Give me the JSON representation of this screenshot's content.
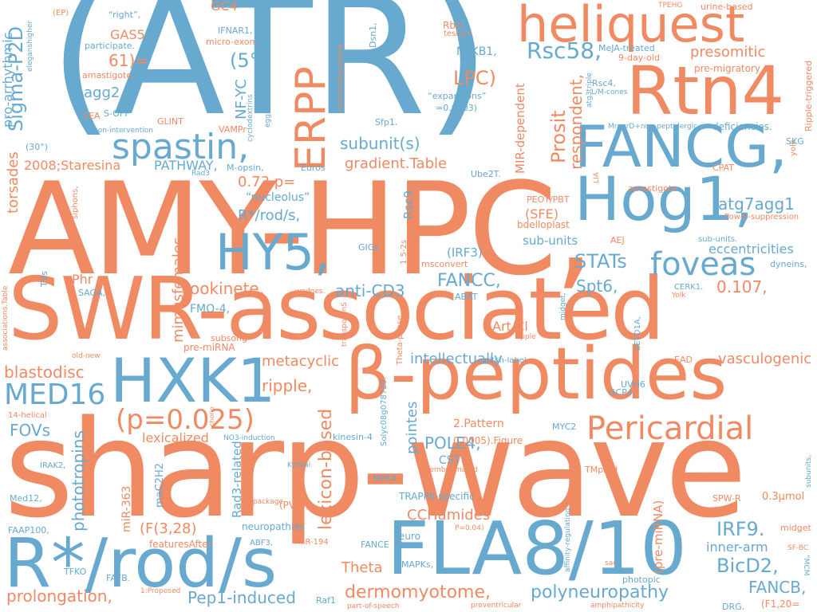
{
  "colors": {
    "orange": "#ef8a62",
    "blue": "#67a9cf",
    "background": "#ffffff"
  },
  "words": [
    {
      "text": "(ATR)",
      "c": "b"
    },
    {
      "text": "AMY-HPC,",
      "c": "o"
    },
    {
      "text": "sharp-wave",
      "c": "o"
    },
    {
      "text": "SWR-associated",
      "c": "o"
    },
    {
      "text": "β-peptides",
      "c": "o"
    },
    {
      "text": "FLA8/10",
      "c": "b"
    },
    {
      "text": "R*/rod/s",
      "c": "b"
    },
    {
      "text": "Rtn4",
      "c": "o"
    },
    {
      "text": "heliquest",
      "c": "o"
    },
    {
      "text": "FANCG,",
      "c": "b"
    },
    {
      "text": "Hog1,",
      "c": "b"
    },
    {
      "text": "HXK1",
      "c": "b"
    },
    {
      "text": "HY5,",
      "c": "b"
    },
    {
      "text": "ERPP",
      "c": "o"
    },
    {
      "text": "spastin,",
      "c": "b"
    },
    {
      "text": "Pericardial",
      "c": "o"
    },
    {
      "text": "(p=0.025)",
      "c": "o"
    },
    {
      "text": "MED16",
      "c": "b"
    },
    {
      "text": "foveas",
      "c": "b"
    },
    {
      "text": "Rsc58,",
      "c": "b"
    },
    {
      "text": "Sigma-P2D",
      "c": "b"
    },
    {
      "text": "LPC)",
      "c": "o"
    },
    {
      "text": "presomitic",
      "c": "o"
    },
    {
      "text": "atg7agg1",
      "c": "b"
    },
    {
      "text": "STATs",
      "c": "b"
    },
    {
      "text": "eccentricities",
      "c": "b"
    },
    {
      "text": "FANCC,",
      "c": "b"
    },
    {
      "text": "Spt6,",
      "c": "b"
    },
    {
      "text": "0.107,",
      "c": "o"
    },
    {
      "text": "vasculogenic",
      "c": "o"
    },
    {
      "text": "IRF9.",
      "c": "b"
    },
    {
      "text": "BicD2,",
      "c": "b"
    },
    {
      "text": "FANCB,",
      "c": "b"
    },
    {
      "text": "inner-arm",
      "c": "b"
    },
    {
      "text": "polyneuropathy",
      "c": "b"
    },
    {
      "text": "dermomyotome,",
      "c": "o"
    },
    {
      "text": "Pep1-induced",
      "c": "b"
    },
    {
      "text": "prolongation,",
      "c": "o"
    },
    {
      "text": "Theta",
      "c": "o"
    },
    {
      "text": "CCHamides",
      "c": "o"
    },
    {
      "text": "POLE4,",
      "c": "b"
    },
    {
      "text": "lexicon-based",
      "c": "o"
    },
    {
      "text": "pointes",
      "c": "b"
    },
    {
      "text": "ripple,",
      "c": "o"
    },
    {
      "text": "metacyclic",
      "c": "o"
    },
    {
      "text": "intellectually",
      "c": "b"
    },
    {
      "text": "blastodisc",
      "c": "o"
    },
    {
      "text": "FOVs",
      "c": "b"
    },
    {
      "text": "phototropins",
      "c": "b"
    },
    {
      "text": "lexicalized",
      "c": "o"
    },
    {
      "text": "mimusfemales",
      "c": "o"
    },
    {
      "text": "ookinete,",
      "c": "o"
    },
    {
      "text": "anti-CD3",
      "c": "b"
    },
    {
      "text": "R*/rod/s,",
      "c": "b"
    },
    {
      "text": "0.73,p=",
      "c": "o"
    },
    {
      "text": "subunit(s)",
      "c": "b"
    },
    {
      "text": "gradient.Table",
      "c": "o"
    },
    {
      "text": "PATHWAY,",
      "c": "b"
    },
    {
      "text": "Prosit",
      "c": "o"
    },
    {
      "text": "respondent,",
      "c": "o"
    },
    {
      "text": "torsades",
      "c": "o"
    },
    {
      "text": "2008;Staresina",
      "c": "o"
    },
    {
      "text": "pro-arrhythmic",
      "c": "b"
    },
    {
      "text": "agg2",
      "c": "b"
    },
    {
      "text": "GAS5.",
      "c": "o"
    },
    {
      "text": "61)=",
      "c": "o"
    },
    {
      "text": "(5°,",
      "c": "b"
    },
    {
      "text": "NF-YC",
      "c": "b"
    },
    {
      "text": "NFKB1,",
      "c": "b"
    },
    {
      "text": "GC4",
      "c": "o"
    },
    {
      "text": "MIR-dependent",
      "c": "o"
    },
    {
      "text": "(SFE)",
      "c": "o"
    },
    {
      "text": "sub-units",
      "c": "b"
    },
    {
      "text": "Rsc9,",
      "c": "b"
    },
    {
      "text": "(IRF3)",
      "c": "b"
    },
    {
      "text": "Art/Cl",
      "c": "o"
    },
    {
      "text": "Phr",
      "c": "o"
    },
    {
      "text": "FMO-4,",
      "c": "b"
    },
    {
      "text": "pre-miRNA",
      "c": "o"
    },
    {
      "text": "subsong",
      "c": "o"
    },
    {
      "text": "2.Pattern",
      "c": "o"
    },
    {
      "text": "CST",
      "c": "b"
    },
    {
      "text": "MPK4",
      "c": "b"
    },
    {
      "text": "TRAPPII-specific",
      "c": "b"
    },
    {
      "text": "neuropathies",
      "c": "b"
    },
    {
      "text": "maC2H2",
      "c": "b"
    },
    {
      "text": "miR-363",
      "c": "o"
    },
    {
      "text": "(F(3,28)",
      "c": "o"
    },
    {
      "text": "Rad3-related",
      "c": "b"
    },
    {
      "text": "(pre-miRNA)",
      "c": "o"
    },
    {
      "text": "0.3µmol",
      "c": "o"
    },
    {
      "text": "(PVC),",
      "c": "o"
    },
    {
      "text": "MAPKs,",
      "c": "b"
    },
    {
      "text": "FANCE",
      "c": "b"
    },
    {
      "text": "euro",
      "c": "b"
    },
    {
      "text": "featuresAfter",
      "c": "o"
    },
    {
      "text": "ABF3,",
      "c": "b"
    },
    {
      "text": "miR-194",
      "c": "o"
    },
    {
      "text": "Raf1",
      "c": "b"
    },
    {
      "text": "TFKO",
      "c": "b"
    },
    {
      "text": "FAFB.",
      "c": "b"
    },
    {
      "text": "FAAP100,",
      "c": "b"
    },
    {
      "text": "Med12,",
      "c": "b"
    },
    {
      "text": "IRAK2,",
      "c": "b"
    },
    {
      "text": "14-helical",
      "c": "o"
    },
    {
      "text": "old-new",
      "c": "o"
    },
    {
      "text": "SAGA,",
      "c": "b"
    },
    {
      "text": "TVs",
      "c": "b"
    },
    {
      "text": "siphons,",
      "c": "o"
    },
    {
      "text": "associations.Table",
      "c": "o"
    },
    {
      "text": "(30°)",
      "c": "b"
    },
    {
      "text": "SEA",
      "c": "o"
    },
    {
      "text": "S-OFF",
      "c": "b"
    },
    {
      "text": "amastigote,",
      "c": "o"
    },
    {
      "text": "participate.",
      "c": "b"
    },
    {
      "text": "“right”,",
      "c": "b"
    },
    {
      "text": "(EP)",
      "c": "o"
    },
    {
      "text": "eleganshigher",
      "c": "b"
    },
    {
      "text": "IFNAR1,",
      "c": "b"
    },
    {
      "text": "micro-exon,",
      "c": "o"
    },
    {
      "text": "cyclodextrins",
      "c": "b"
    },
    {
      "text": "eggshells",
      "c": "b"
    },
    {
      "text": "GLINT",
      "c": "o"
    },
    {
      "text": "VAMPr",
      "c": "o"
    },
    {
      "text": "non-intervention",
      "c": "b"
    },
    {
      "text": "M-opsin,",
      "c": "b"
    },
    {
      "text": "Rad3",
      "c": "b"
    },
    {
      "text": "Euros",
      "c": "b"
    },
    {
      "text": "“nucleolus”",
      "c": "b"
    },
    {
      "text": "Dsn1,",
      "c": "b"
    },
    {
      "text": "non-biodegradable",
      "c": "o"
    },
    {
      "text": "Rbcl",
      "c": "o"
    },
    {
      "text": "test;z=",
      "c": "o"
    },
    {
      "text": "“expansions”",
      "c": "b"
    },
    {
      "text": "=0.0003)",
      "c": "b"
    },
    {
      "text": "Sfp1.",
      "c": "b"
    },
    {
      "text": "MeJA-treated",
      "c": "b"
    },
    {
      "text": "9-day-old",
      "c": "o"
    },
    {
      "text": "TPEHG",
      "c": "o"
    },
    {
      "text": "urine-based",
      "c": "o"
    },
    {
      "text": "pre-migratory",
      "c": "o"
    },
    {
      "text": "Rsc4,",
      "c": "b"
    },
    {
      "text": "L/M-cones",
      "c": "b"
    },
    {
      "text": "atg3triple",
      "c": "b"
    },
    {
      "text": "MrgprD+non-peptidergic",
      "c": "b"
    },
    {
      "text": "deficiencies.",
      "c": "b"
    },
    {
      "text": "Ripple-triggered",
      "c": "o"
    },
    {
      "text": "yolk",
      "c": "o"
    },
    {
      "text": "SKG",
      "c": "b"
    },
    {
      "text": "CPAT",
      "c": "o"
    },
    {
      "text": "LIA",
      "c": "o"
    },
    {
      "text": "amastigote",
      "c": "o"
    },
    {
      "text": "Power-suppression",
      "c": "o"
    },
    {
      "text": "PEOT/PBT",
      "c": "o"
    },
    {
      "text": "bdelloplast",
      "c": "o"
    },
    {
      "text": "AEJ",
      "c": "o"
    },
    {
      "text": "sub-units.",
      "c": "b"
    },
    {
      "text": "dyneins,",
      "c": "b"
    },
    {
      "text": "Ube2T.",
      "c": "b"
    },
    {
      "text": "CERK1.",
      "c": "b"
    },
    {
      "text": "Yolk",
      "c": "o"
    },
    {
      "text": "GIGs",
      "c": "b"
    },
    {
      "text": "1.5-2s",
      "c": "o"
    },
    {
      "text": "msconvert",
      "c": "o"
    },
    {
      "text": "ABAT",
      "c": "b"
    },
    {
      "text": "midget,",
      "c": "b"
    },
    {
      "text": "ripple",
      "c": "o"
    },
    {
      "text": "SETD1A,",
      "c": "b"
    },
    {
      "text": "EAD",
      "c": "o"
    },
    {
      "text": "wedges.",
      "c": "o"
    },
    {
      "text": "transposonS",
      "c": "o"
    },
    {
      "text": "Theta-phase",
      "c": "o"
    },
    {
      "text": "Solyc08g078720.",
      "c": "b"
    },
    {
      "text": "pitch-label",
      "c": "b"
    },
    {
      "text": "UVH6",
      "c": "b"
    },
    {
      "text": "GCP4,",
      "c": "b"
    },
    {
      "text": "MYC2",
      "c": "b"
    },
    {
      "text": "0.0005).Figure",
      "c": "o"
    },
    {
      "text": "kinesin-4",
      "c": "b"
    },
    {
      "text": "NO3-induction",
      "c": "b"
    },
    {
      "text": "chorio",
      "c": "o"
    },
    {
      "text": "Kyokai",
      "c": "b"
    },
    {
      "text": "unembryonated",
      "c": "o"
    },
    {
      "text": "TMpred",
      "c": "o"
    },
    {
      "text": "SPW-R",
      "c": "o"
    },
    {
      "text": "midget",
      "c": "o"
    },
    {
      "text": "SF-BC",
      "c": "o"
    },
    {
      "text": "“MCM",
      "c": "b"
    },
    {
      "text": "subunits,",
      "c": "b"
    },
    {
      "text": "repackage",
      "c": "o"
    },
    {
      "text": "P=0.04)",
      "c": "o"
    },
    {
      "text": "affinity-regulating",
      "c": "b"
    },
    {
      "text": "sac",
      "c": "o"
    },
    {
      "text": "photopic",
      "c": "b"
    },
    {
      "text": "amphipathicity",
      "c": "o"
    },
    {
      "text": "DRG.",
      "c": "b"
    },
    {
      "text": "(F1,20=",
      "c": "o"
    },
    {
      "text": "proventricular",
      "c": "o"
    },
    {
      "text": "part-of-speech",
      "c": "o"
    },
    {
      "text": "1:Proposed",
      "c": "o"
    }
  ]
}
